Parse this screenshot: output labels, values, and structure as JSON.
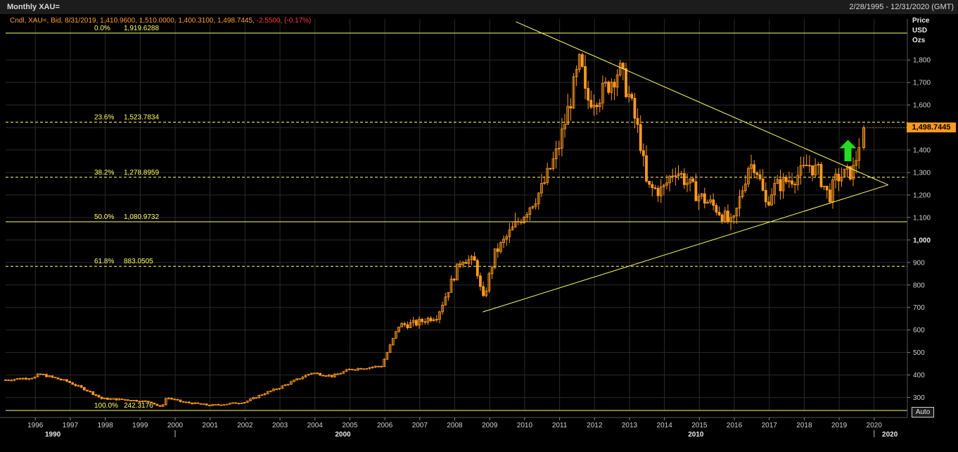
{
  "header": {
    "title": "Monthly XAU=",
    "range": "2/28/1995 - 12/31/2020 (GMT)"
  },
  "info_line": {
    "main": "Cndl, XAU=, Bid, 8/31/2019, 1,410.9600, 1,510.0000, 1,400.3100, 1,498.7445,",
    "change": " -2.5500, (-0.17%)"
  },
  "colors": {
    "background": "#000000",
    "candle": "#ff9a1f",
    "fib_line": "#ffff66",
    "arrow": "#22dd22",
    "grid": "#2a2a2a"
  },
  "y_axis": {
    "title_lines": [
      "Price",
      "USD",
      "Ozs"
    ],
    "ticks": [
      300,
      400,
      500,
      600,
      700,
      800,
      900,
      1000,
      1100,
      1200,
      1300,
      1400,
      1500,
      1600,
      1700,
      1800
    ],
    "tick_labels": [
      "300",
      "400",
      "500",
      "600",
      "700",
      "800",
      "900",
      "1,000",
      "1,100",
      "1,200",
      "1,300",
      "1,400",
      "1,500",
      "1,600",
      "1,700",
      "1,800"
    ],
    "bold_tick": "1,000",
    "last_price_label": "1,498.7445",
    "auto_label": "Auto"
  },
  "x_axis": {
    "year_labels": [
      "1996",
      "1997",
      "1998",
      "1999",
      "2000",
      "2001",
      "2002",
      "2003",
      "2004",
      "2005",
      "2006",
      "2007",
      "2008",
      "2009",
      "2010",
      "2011",
      "2012",
      "2013",
      "2014",
      "2015",
      "2016",
      "2017",
      "2018",
      "2019",
      "2020"
    ],
    "decade_labels": [
      "1990",
      "2000",
      "2010",
      "2020"
    ]
  },
  "chart_data": {
    "type": "candlestick",
    "x_range": [
      1995.15,
      2020.95
    ],
    "ylim": [
      242.3176,
      1919.6288
    ],
    "fibonacci": [
      {
        "pct": "0.0%",
        "value": 1919.6288,
        "value_label": "1,919.6288",
        "style": "solid"
      },
      {
        "pct": "23.6%",
        "value": 1523.7834,
        "value_label": "1,523.7834",
        "style": "dashed"
      },
      {
        "pct": "38.2%",
        "value": 1278.8959,
        "value_label": "1,278.8959",
        "style": "dashed"
      },
      {
        "pct": "50.0%",
        "value": 1080.9732,
        "value_label": "1,080.9732",
        "style": "solid"
      },
      {
        "pct": "61.8%",
        "value": 883.0505,
        "value_label": "883.0505",
        "style": "dashed"
      },
      {
        "pct": "100.0%",
        "value": 242.3176,
        "value_label": "242.3176",
        "style": "solid"
      }
    ],
    "trendlines": [
      {
        "from": [
          2009.75,
          1970
        ],
        "to": [
          2020.4,
          1245
        ]
      },
      {
        "from": [
          2008.8,
          680
        ],
        "to": [
          2020.4,
          1245
        ]
      }
    ],
    "arrow": {
      "x": 2019.25,
      "y_from": 1350,
      "y_to": 1445
    },
    "monthly_close_anchors": [
      [
        1995.15,
        378
      ],
      [
        1996.0,
        390
      ],
      [
        1996.1,
        405
      ],
      [
        1996.9,
        372
      ],
      [
        1997.5,
        330
      ],
      [
        1997.9,
        295
      ],
      [
        1998.6,
        290
      ],
      [
        1999.3,
        280
      ],
      [
        1999.6,
        255
      ],
      [
        1999.75,
        300
      ],
      [
        2000.2,
        280
      ],
      [
        2001.0,
        265
      ],
      [
        2001.4,
        270
      ],
      [
        2002.0,
        280
      ],
      [
        2002.5,
        315
      ],
      [
        2003.0,
        345
      ],
      [
        2003.9,
        410
      ],
      [
        2004.5,
        395
      ],
      [
        2005.0,
        425
      ],
      [
        2005.9,
        440
      ],
      [
        2006.4,
        620
      ],
      [
        2006.9,
        630
      ],
      [
        2007.5,
        665
      ],
      [
        2007.95,
        830
      ],
      [
        2008.2,
        920
      ],
      [
        2008.6,
        900
      ],
      [
        2008.8,
        725
      ],
      [
        2009.15,
        940
      ],
      [
        2009.9,
        1100
      ],
      [
        2010.5,
        1230
      ],
      [
        2010.95,
        1400
      ],
      [
        2011.6,
        1800
      ],
      [
        2011.75,
        1620
      ],
      [
        2012.2,
        1650
      ],
      [
        2012.7,
        1760
      ],
      [
        2012.95,
        1660
      ],
      [
        2013.3,
        1450
      ],
      [
        2013.5,
        1230
      ],
      [
        2013.95,
        1220
      ],
      [
        2014.3,
        1320
      ],
      [
        2014.95,
        1200
      ],
      [
        2015.5,
        1140
      ],
      [
        2015.95,
        1060
      ],
      [
        2016.4,
        1330
      ],
      [
        2016.6,
        1340
      ],
      [
        2016.9,
        1160
      ],
      [
        2017.1,
        1230
      ],
      [
        2017.7,
        1280
      ],
      [
        2017.95,
        1300
      ],
      [
        2018.1,
        1340
      ],
      [
        2018.4,
        1300
      ],
      [
        2018.7,
        1190
      ],
      [
        2018.95,
        1280
      ],
      [
        2019.2,
        1290
      ],
      [
        2019.4,
        1310
      ],
      [
        2019.55,
        1410
      ],
      [
        2019.62,
        1499
      ]
    ],
    "last_candle": {
      "date": "8/31/2019",
      "open": 1410.96,
      "high": 1510.0,
      "low": 1400.31,
      "close": 1498.7445
    }
  }
}
